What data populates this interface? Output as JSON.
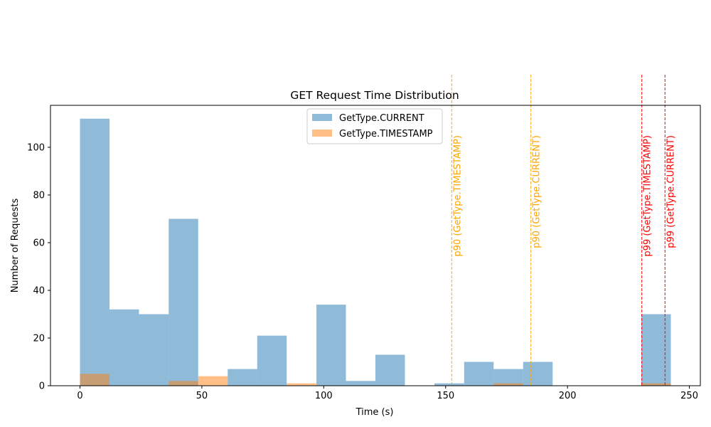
{
  "chart_data": {
    "type": "bar",
    "title": "GET Request Time Distribution",
    "xlabel": "Time (s)",
    "ylabel": "Number of Requests",
    "xlim": [
      -12.1,
      254.5
    ],
    "ylim": [
      0,
      117.6
    ],
    "xticks": [
      0,
      50,
      100,
      150,
      200,
      250
    ],
    "yticks": [
      0,
      20,
      40,
      60,
      80,
      100
    ],
    "bin_edges": [
      0,
      12.1,
      24.2,
      36.4,
      48.5,
      60.6,
      72.7,
      84.8,
      97.0,
      109.1,
      121.2,
      133.3,
      145.4,
      157.6,
      169.7,
      181.8,
      193.9,
      206.0,
      218.2,
      230.3,
      242.4
    ],
    "series": [
      {
        "name": "GetType.CURRENT",
        "color": "#1f77b4",
        "alpha": 0.5,
        "values": [
          112,
          32,
          30,
          70,
          0,
          7,
          21,
          0,
          34,
          2,
          13,
          0,
          1,
          10,
          7,
          10,
          0,
          0,
          0,
          30
        ]
      },
      {
        "name": "GetType.TIMESTAMP",
        "color": "#ff7f0e",
        "alpha": 0.5,
        "values": [
          5,
          0,
          0,
          2,
          4,
          0,
          0,
          1,
          0,
          0,
          0,
          0,
          0,
          0,
          1,
          0,
          0,
          0,
          0,
          1
        ]
      }
    ],
    "reference_lines": [
      {
        "x": 152.5,
        "label": "p90 (GetType.TIMESTAMP)",
        "color": "#FFA500"
      },
      {
        "x": 185.0,
        "label": "p90 (GetType.CURRENT)",
        "color": "#FFA500"
      },
      {
        "x": 230.5,
        "label": "p99 (GetType.TIMESTAMP)",
        "color": "#FF0000"
      },
      {
        "x": 240.0,
        "label": "p99 (GetType.CURRENT)",
        "color": "#FF0000"
      }
    ],
    "legend_position": "top-center",
    "grid": false
  }
}
